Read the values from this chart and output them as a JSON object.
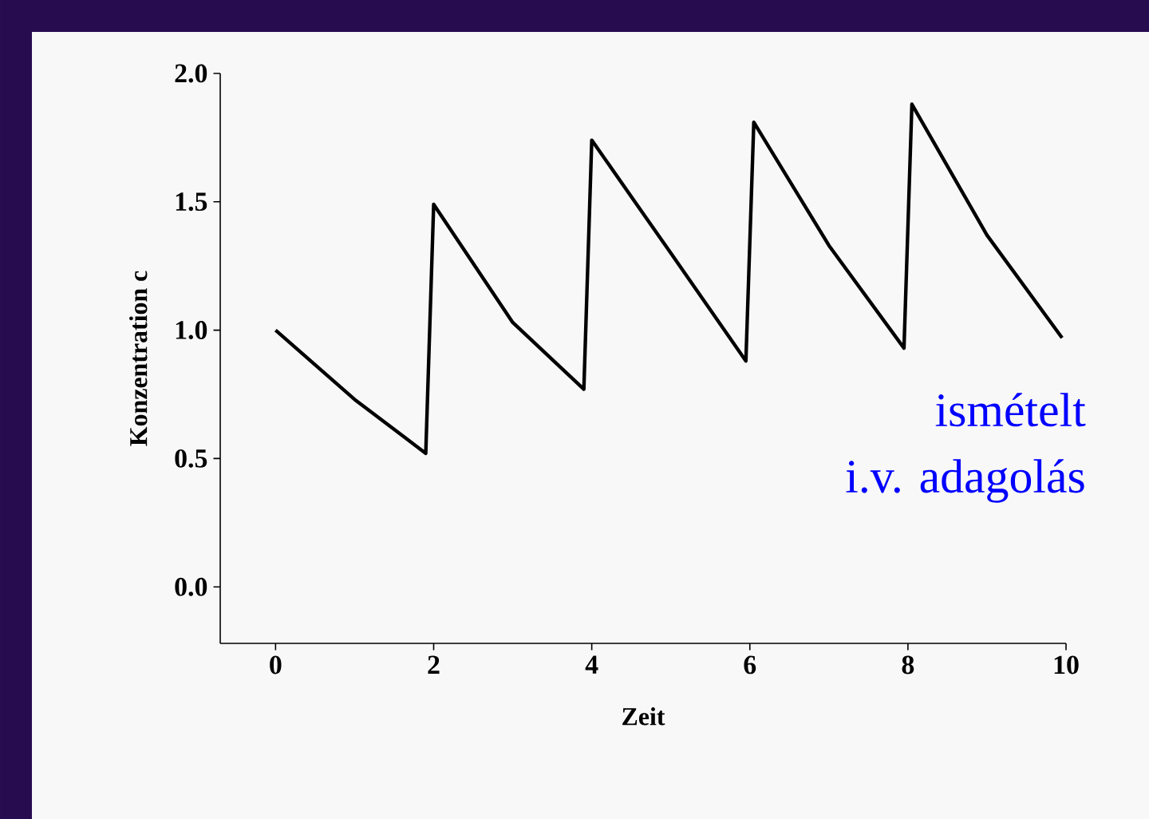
{
  "chart_data": {
    "type": "line",
    "xlabel": "Zeit",
    "ylabel": "Konzentration c",
    "annotations": [
      "ismételt",
      "i.v. adagolás"
    ],
    "x": [
      0,
      1,
      1.9,
      2,
      3,
      3.9,
      4,
      5,
      5.95,
      6.05,
      7,
      7.95,
      8.05,
      9,
      9.95
    ],
    "series": [
      {
        "color": "#000000",
        "values": [
          1.0,
          0.73,
          0.52,
          1.49,
          1.03,
          0.77,
          1.74,
          1.3,
          0.88,
          1.81,
          1.33,
          0.93,
          1.88,
          1.37,
          0.97
        ]
      }
    ],
    "xlim": [
      -0.7,
      10
    ],
    "ylim": [
      -0.22,
      2.0
    ],
    "xticks": [
      0,
      2,
      4,
      6,
      8,
      10
    ],
    "yticks": [
      {
        "value": 0,
        "label": "0.0"
      },
      {
        "value": 0.5,
        "label": "0.5"
      },
      {
        "value": 1,
        "label": "1.0"
      },
      {
        "value": 1.5,
        "label": "1.5"
      },
      {
        "value": 2,
        "label": "2.0"
      }
    ],
    "grid": false,
    "marker": "none",
    "line_style": "solid"
  }
}
